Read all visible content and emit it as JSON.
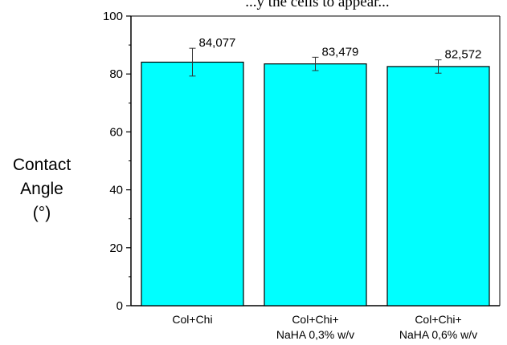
{
  "chart_data": {
    "type": "bar",
    "title": "...y the cells to appear...",
    "ylabel_lines": [
      "Contact",
      "Angle",
      "(°)"
    ],
    "xlabel": "",
    "ylim": [
      0,
      100
    ],
    "yticks": [
      0,
      20,
      40,
      60,
      80,
      100
    ],
    "categories": [
      [
        "Col+Chi"
      ],
      [
        "Col+Chi+",
        "NaHA 0,3% w/v"
      ],
      [
        "Col+Chi+",
        "NaHA 0,6% w/v"
      ]
    ],
    "values": [
      84.077,
      83.479,
      82.572
    ],
    "value_labels": [
      "84,077",
      "83,479",
      "82,572"
    ],
    "errors": [
      4.8,
      2.3,
      2.3
    ],
    "grid": false,
    "legend": "none",
    "colors": {
      "bar_fill": "#00ffff",
      "bar_stroke": "#000000",
      "axis": "#000000"
    }
  }
}
